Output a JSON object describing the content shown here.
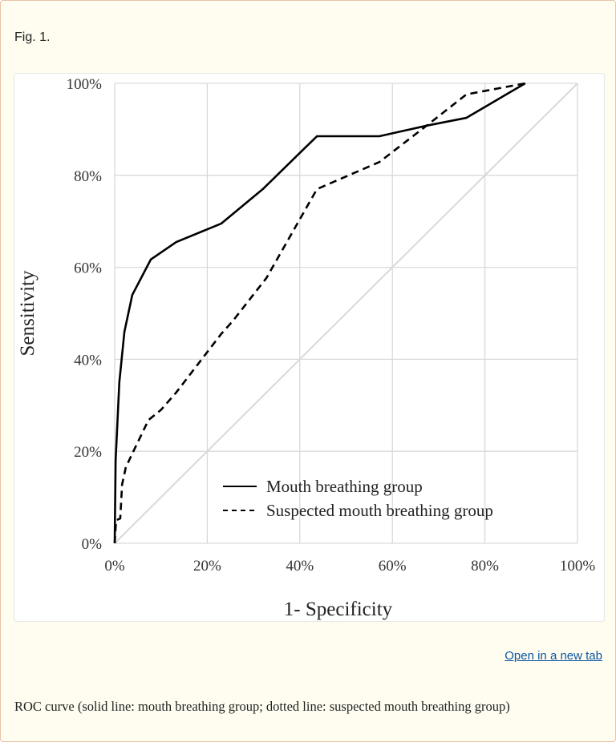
{
  "figure": {
    "label": "Fig. 1.",
    "open_link": "Open in a new tab",
    "caption": "ROC curve (solid line: mouth breathing group; dotted line: suspected mouth breathing group)"
  },
  "chart_data": {
    "type": "line",
    "xlabel": "1- Specificity",
    "ylabel": "Sensitivity",
    "xlim": [
      0,
      100
    ],
    "ylim": [
      0,
      100
    ],
    "xticks": [
      "0%",
      "20%",
      "40%",
      "60%",
      "80%",
      "100%"
    ],
    "yticks": [
      "0%",
      "20%",
      "40%",
      "60%",
      "80%",
      "100%"
    ],
    "grid": true,
    "legend_placement": "bottom-right",
    "reference_line": {
      "x": [
        0,
        100
      ],
      "y": [
        0,
        100
      ],
      "color": "#d9d9d9"
    },
    "series": [
      {
        "name": "Mouth breathing group",
        "style": "solid",
        "color": "#000000",
        "x": [
          0,
          0.2,
          1.0,
          2.1,
          3.8,
          7.8,
          13.3,
          23,
          32,
          43.7,
          57.2,
          67.4,
          76,
          88.7
        ],
        "y": [
          0,
          18,
          35,
          46,
          54,
          61.7,
          65.5,
          69.5,
          77,
          88.5,
          88.5,
          90.8,
          92.5,
          100
        ]
      },
      {
        "name": "Suspected mouth breathing group",
        "style": "dashed",
        "color": "#000000",
        "x": [
          0,
          0.3,
          1.2,
          1.6,
          2.4,
          3.8,
          7.3,
          10,
          13.3,
          23,
          25.5,
          32.8,
          43.7,
          57.2,
          67.4,
          76,
          88.7
        ],
        "y": [
          0,
          5,
          5.4,
          12.8,
          16.5,
          19.5,
          26.8,
          29,
          32.8,
          45.5,
          48.3,
          57.7,
          77,
          82.9,
          90.8,
          97.6,
          100
        ]
      }
    ]
  }
}
